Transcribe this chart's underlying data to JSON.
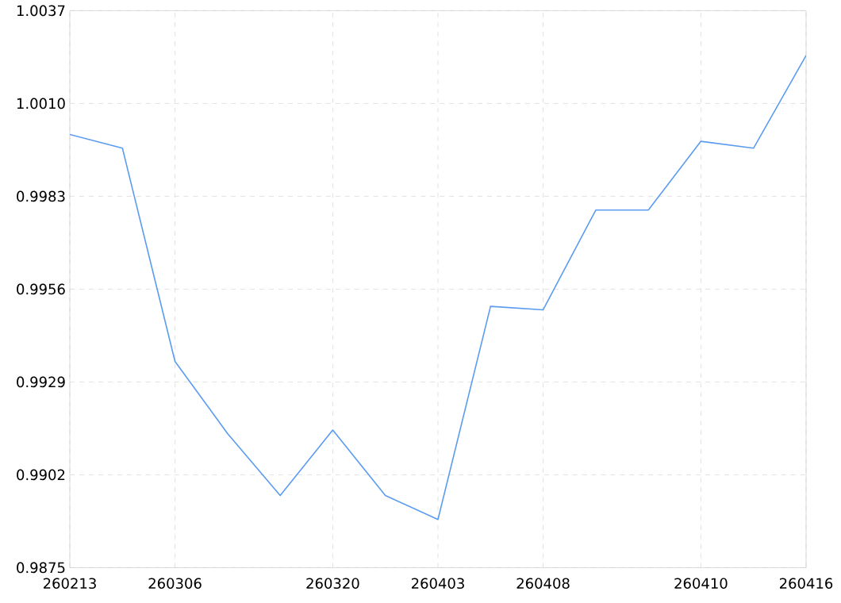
{
  "chart_data": {
    "type": "line",
    "categories": [
      "260213",
      null,
      "260306",
      null,
      null,
      "260320",
      null,
      "260403",
      null,
      "260408",
      null,
      null,
      "260410",
      null,
      "260416"
    ],
    "series": [
      {
        "color": "#5b9bf0",
        "values": [
          1.0001,
          0.9997,
          0.9935,
          0.9914,
          0.9896,
          0.9915,
          0.9896,
          0.9889,
          0.9951,
          0.995,
          0.9979,
          0.9979,
          0.9999,
          0.9997,
          1.0024
        ]
      }
    ],
    "ylim": [
      0.9875,
      1.0037
    ],
    "yticks": [
      {
        "value": 0.9875,
        "label": "0.9875"
      },
      {
        "value": 0.9902,
        "label": "0.9902"
      },
      {
        "value": 0.9929,
        "label": "0.9929"
      },
      {
        "value": 0.9956,
        "label": "0.9956"
      },
      {
        "value": 0.9983,
        "label": "0.9983"
      },
      {
        "value": 1.001,
        "label": "1.0010"
      },
      {
        "value": 1.0037,
        "label": "1.0037"
      }
    ],
    "grid": true
  }
}
